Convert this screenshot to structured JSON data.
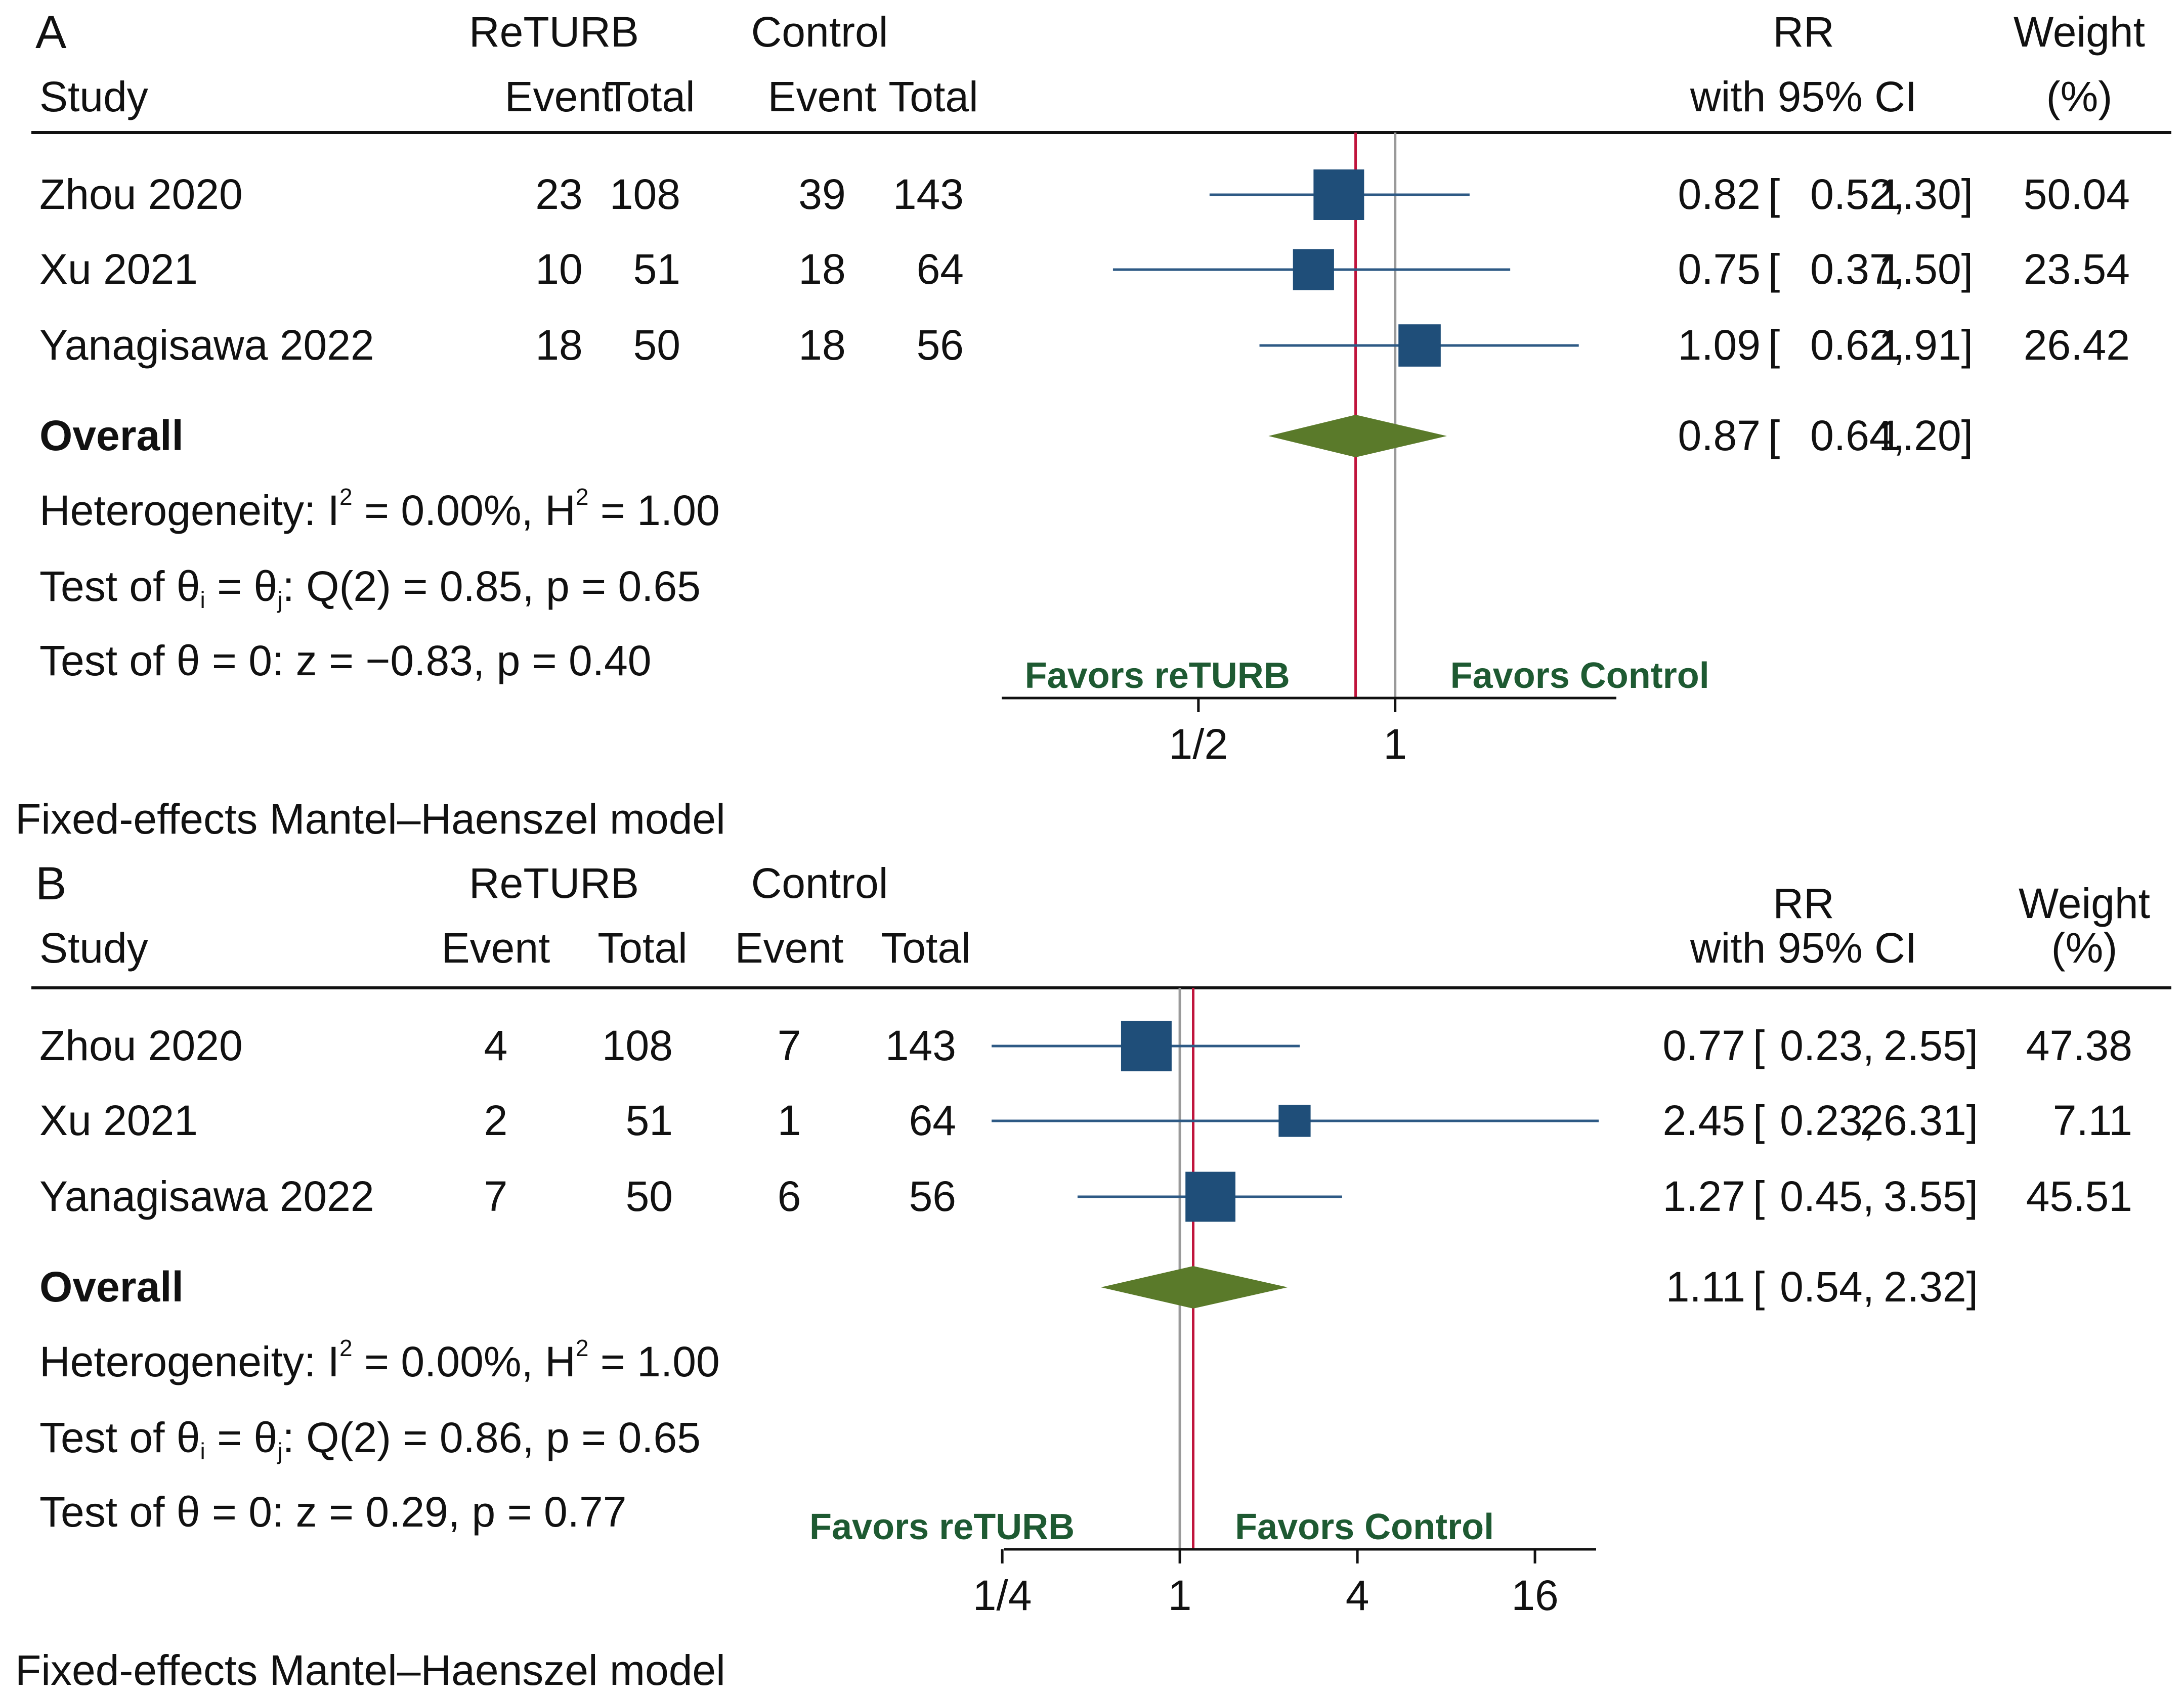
{
  "colors": {
    "marker": "#1f4e79",
    "ci_line": "#2e5a85",
    "diamond": "#5a7a2a",
    "estimate_line": "#c0143c",
    "null_line": "#9a9a9a",
    "favors_text": "#1e5a32",
    "text": "#111111"
  },
  "icons": {
    "study_marker": "square-marker",
    "overall_marker": "diamond-marker"
  },
  "chart_data": [
    {
      "type": "forest",
      "panel_label": "A",
      "headers": {
        "study": "Study",
        "group1": "ReTURB",
        "group2": "Control",
        "event": "Event",
        "total": "Total",
        "rr1": "RR",
        "rr2": "with 95% CI",
        "weight1": "Weight",
        "weight2": "(%)"
      },
      "axis": {
        "scale": "log2",
        "xlim": [
          0.25,
          2.2
        ],
        "ticks": [
          0.5,
          1
        ],
        "tick_labels": [
          "1/2",
          "1"
        ]
      },
      "favors_left": "Favors reTURB",
      "favors_right": "Favors Control",
      "studies": [
        {
          "name": "Zhou 2020",
          "e1": "23",
          "t1": "108",
          "e2": "39",
          "t2": "143",
          "rr": 0.82,
          "lo": 0.52,
          "hi": 1.3,
          "rr_text": "0.82",
          "lo_text": "0.52,",
          "hi_text": "1.30]",
          "weight": 50.04,
          "weight_text": "50.04"
        },
        {
          "name": "Xu 2021",
          "e1": "10",
          "t1": "51",
          "e2": "18",
          "t2": "64",
          "rr": 0.75,
          "lo": 0.37,
          "hi": 1.5,
          "rr_text": "0.75",
          "lo_text": "0.37,",
          "hi_text": "1.50]",
          "weight": 23.54,
          "weight_text": "23.54"
        },
        {
          "name": "Yanagisawa 2022",
          "e1": "18",
          "t1": "50",
          "e2": "18",
          "t2": "56",
          "rr": 1.09,
          "lo": 0.62,
          "hi": 1.91,
          "rr_text": "1.09",
          "lo_text": "0.62,",
          "hi_text": "1.91]",
          "weight": 26.42,
          "weight_text": "26.42"
        }
      ],
      "overall": {
        "label": "Overall",
        "rr": 0.87,
        "lo": 0.64,
        "hi": 1.2,
        "rr_text": "0.87",
        "lo_text": "0.64,",
        "hi_text": "1.20]"
      },
      "heterogeneity": {
        "prefix": "Heterogeneity: I",
        "i2_rest": " = 0.00%, H",
        "h2_rest": " = 1.00",
        "sup": "2"
      },
      "test_homog": {
        "a": "Test of θ",
        "sub_i": "i",
        "b": " = θ",
        "sub_j": "j",
        "c": ": Q(2) = 0.85, p = 0.65"
      },
      "test_overall": "Test of θ = 0: z = −0.83, p = 0.40",
      "model": "Fixed-effects Mantel–Haenszel model"
    },
    {
      "type": "forest",
      "panel_label": "B",
      "headers": {
        "study": "Study",
        "group1": "ReTURB",
        "group2": "Control",
        "event": "Event",
        "total": "Total",
        "rr1": "RR",
        "rr2": "with 95% CI",
        "weight1": "Weight",
        "weight2": "(%)"
      },
      "axis": {
        "scale": "log2",
        "xlim": [
          0.23,
          26.31
        ],
        "ticks": [
          0.25,
          1,
          4,
          16
        ],
        "tick_labels": [
          "1/4",
          "1",
          "4",
          "16"
        ]
      },
      "favors_left": "Favors reTURB",
      "favors_right": "Favors Control",
      "studies": [
        {
          "name": "Zhou 2020",
          "e1": "4",
          "t1": "108",
          "e2": "7",
          "t2": "143",
          "rr": 0.77,
          "lo": 0.23,
          "hi": 2.55,
          "rr_text": "0.77",
          "lo_text": "0.23,",
          "hi_text": "2.55]",
          "weight": 47.38,
          "weight_text": "47.38"
        },
        {
          "name": "Xu 2021",
          "e1": "2",
          "t1": "51",
          "e2": "1",
          "t2": "64",
          "rr": 2.45,
          "lo": 0.23,
          "hi": 26.31,
          "rr_text": "2.45",
          "lo_text": "0.23,",
          "hi_text": "26.31]",
          "weight": 7.11,
          "weight_text": "7.11"
        },
        {
          "name": "Yanagisawa 2022",
          "e1": "7",
          "t1": "50",
          "e2": "6",
          "t2": "56",
          "rr": 1.27,
          "lo": 0.45,
          "hi": 3.55,
          "rr_text": "1.27",
          "lo_text": "0.45,",
          "hi_text": "3.55]",
          "weight": 45.51,
          "weight_text": "45.51"
        }
      ],
      "overall": {
        "label": "Overall",
        "rr": 1.11,
        "lo": 0.54,
        "hi": 2.32,
        "rr_text": "1.11",
        "lo_text": "0.54,",
        "hi_text": "2.32]"
      },
      "heterogeneity": {
        "prefix": "Heterogeneity: I",
        "i2_rest": " = 0.00%, H",
        "h2_rest": " = 1.00",
        "sup": "2"
      },
      "test_homog": {
        "a": "Test of θ",
        "sub_i": "i",
        "b": " = θ",
        "sub_j": "j",
        "c": ": Q(2) = 0.86, p = 0.65"
      },
      "test_overall": "Test of θ = 0: z = 0.29, p = 0.77",
      "model": "Fixed-effects Mantel–Haenszel model"
    }
  ]
}
